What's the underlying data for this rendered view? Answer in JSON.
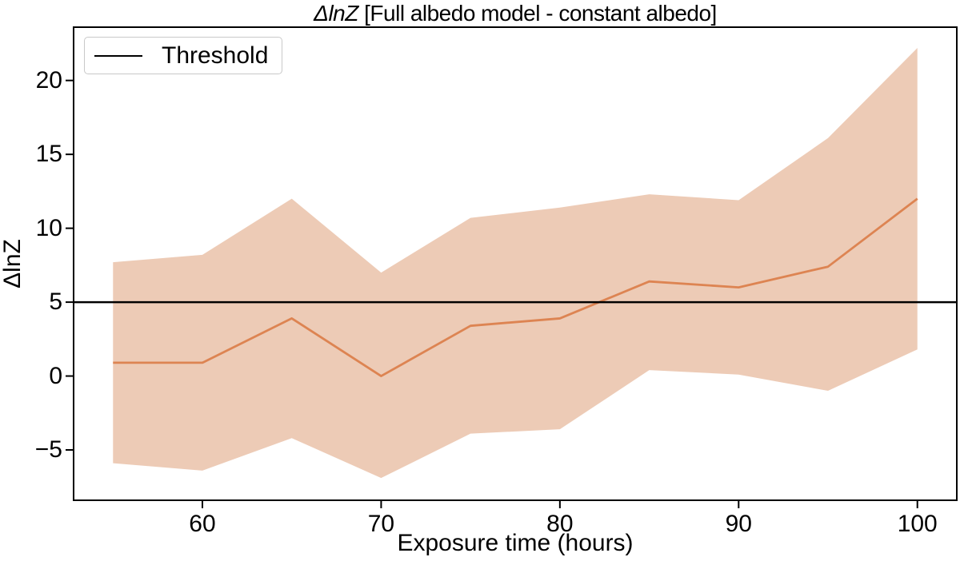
{
  "figure": {
    "title": {
      "math_part": "ΔlnZ",
      "text_part": " [Full albedo model - constant albedo]"
    },
    "x_axis": {
      "label": "Exposure time (hours)"
    },
    "y_axis": {
      "label": "ΔlnZ"
    },
    "legend": {
      "entries": [
        {
          "label": "Threshold",
          "line_color": "#000000"
        }
      ]
    }
  },
  "chart_data": {
    "type": "line",
    "title": "ΔlnZ [Full albedo model - constant albedo]",
    "xlabel": "Exposure time (hours)",
    "ylabel": "ΔlnZ",
    "x": [
      55,
      60,
      65,
      70,
      75,
      80,
      85,
      90,
      95,
      100
    ],
    "series": [
      {
        "name": "delta_lnZ_median",
        "type": "line",
        "color": "#dd8452",
        "values": [
          0.9,
          0.9,
          3.9,
          0.0,
          3.4,
          3.9,
          6.4,
          6.0,
          7.4,
          12.0
        ]
      },
      {
        "name": "band_upper",
        "type": "band-edge",
        "values": [
          7.7,
          8.2,
          12.0,
          7.0,
          10.7,
          11.4,
          12.3,
          11.9,
          16.1,
          22.2
        ]
      },
      {
        "name": "band_lower",
        "type": "band-edge",
        "values": [
          -5.9,
          -6.4,
          -4.2,
          -6.9,
          -3.9,
          -3.6,
          0.4,
          0.1,
          -1.0,
          1.8
        ]
      },
      {
        "name": "Threshold",
        "type": "hline",
        "color": "#000000",
        "value": 5
      }
    ],
    "band_fill_color": "#edcbb6",
    "xlim": [
      52.75,
      102.25
    ],
    "ylim": [
      -8.46,
      23.66
    ],
    "xticks": [
      {
        "v": 60,
        "label": "60"
      },
      {
        "v": 70,
        "label": "70"
      },
      {
        "v": 80,
        "label": "80"
      },
      {
        "v": 90,
        "label": "90"
      },
      {
        "v": 100,
        "label": "100"
      }
    ],
    "yticks": [
      {
        "v": 20,
        "label": "20"
      },
      {
        "v": 15,
        "label": "15"
      },
      {
        "v": 10,
        "label": "10"
      },
      {
        "v": 5,
        "label": "5"
      },
      {
        "v": 0,
        "label": "0"
      },
      {
        "v": -5,
        "label": "−5"
      }
    ],
    "legend_position": "upper left",
    "grid": false
  }
}
